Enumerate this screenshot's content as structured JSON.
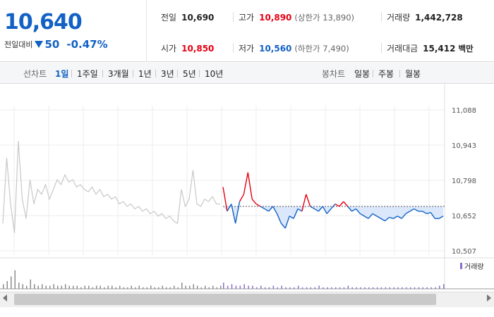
{
  "summary": {
    "current_price": "10,640",
    "change_label": "전일대비",
    "change_value": "50",
    "change_pct": "-0.47%",
    "stats": [
      {
        "key": "전일",
        "value": "10,690",
        "tone": "neutral",
        "sub": ""
      },
      {
        "key": "고가",
        "value": "10,890",
        "tone": "up",
        "sub": "(상한가 13,890)"
      },
      {
        "key": "거래량",
        "value": "1,442,728",
        "tone": "neutral",
        "sub": ""
      },
      {
        "key": "시가",
        "value": "10,850",
        "tone": "up",
        "sub": ""
      },
      {
        "key": "저가",
        "value": "10,560",
        "tone": "down",
        "sub": "(하한가 7,490)"
      },
      {
        "key": "거래대금",
        "value": "15,412",
        "tone": "neutral",
        "sub": "백만"
      }
    ]
  },
  "tabs": {
    "line_label": "선차트",
    "line_items": [
      "1일",
      "1주일",
      "3개월",
      "1년",
      "3년",
      "5년",
      "10년"
    ],
    "selected_line": "1일",
    "candle_label": "봉차트",
    "candle_items": [
      "일봉",
      "주봉",
      "월봉"
    ]
  },
  "colors": {
    "up": "#e60012",
    "down": "#1261c4",
    "prior": "#c8c8c8",
    "volume": "#8c8c8c",
    "volume_today": "#8a6fc8"
  },
  "chart_data": {
    "type": "line",
    "y_ticks": [
      "11,088",
      "10,943",
      "10,798",
      "10,652",
      "10,507"
    ],
    "ylim": [
      10507,
      11088
    ],
    "reference_price": 10690,
    "legend": "거래량",
    "grid": true,
    "prior_series": [
      10620,
      10890,
      10700,
      10580,
      10960,
      10720,
      10640,
      10800,
      10700,
      10760,
      10740,
      10780,
      10720,
      10760,
      10800,
      10780,
      10820,
      10790,
      10800,
      10770,
      10780,
      10760,
      10750,
      10770,
      10740,
      10760,
      10730,
      10740,
      10720,
      10730,
      10700,
      10710,
      10690,
      10700,
      10680,
      10690,
      10670,
      10680,
      10660,
      10670,
      10650,
      10660,
      10640,
      10650,
      10630,
      10620,
      10760,
      10690,
      10720,
      10840,
      10700,
      10690,
      10720,
      10710,
      10730,
      10700,
      10700
    ],
    "today_series": [
      10770,
      10670,
      10700,
      10620,
      10710,
      10740,
      10830,
      10720,
      10700,
      10690,
      10680,
      10670,
      10690,
      10660,
      10620,
      10600,
      10650,
      10640,
      10680,
      10670,
      10740,
      10690,
      10680,
      10670,
      10690,
      10660,
      10680,
      10700,
      10690,
      10710,
      10690,
      10670,
      10680,
      10660,
      10650,
      10640,
      10660,
      10650,
      10640,
      10630,
      10645,
      10640,
      10650,
      10640,
      10660,
      10670,
      10680,
      10670,
      10670,
      10660,
      10665,
      10640,
      10640,
      10650
    ],
    "prior_volume": [
      3,
      5,
      8,
      12,
      4,
      3,
      2,
      6,
      3,
      2,
      3,
      2,
      2,
      3,
      2,
      2,
      3,
      2,
      2,
      2,
      1,
      2,
      2,
      1,
      2,
      2,
      1,
      2,
      2,
      1,
      2,
      1,
      1,
      2,
      1,
      2,
      1,
      1,
      2,
      1,
      1,
      2,
      1,
      1,
      2,
      1,
      4,
      2,
      2,
      3,
      2,
      1,
      2,
      1,
      2,
      1,
      2
    ],
    "today_volume": [
      4,
      2,
      3,
      2,
      2,
      3,
      2,
      2,
      1,
      2,
      1,
      1,
      2,
      1,
      2,
      1,
      1,
      1,
      2,
      1,
      1,
      1,
      1,
      2,
      1,
      1,
      1,
      1,
      1,
      1,
      2,
      1,
      1,
      1,
      1,
      1,
      1,
      1,
      1,
      1,
      1,
      1,
      1,
      1,
      1,
      1,
      1,
      1,
      1,
      1,
      1,
      1,
      2,
      3
    ]
  }
}
